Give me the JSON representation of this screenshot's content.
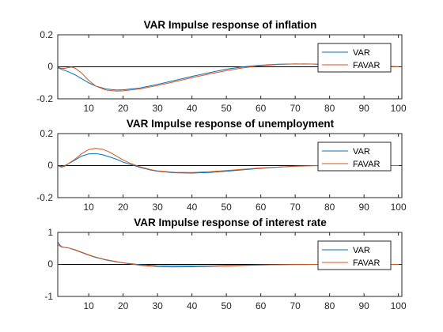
{
  "colors": {
    "var": "#0072BD",
    "favar": "#D95319",
    "axis": "#262626",
    "zero": "#000000",
    "background": "#FFFFFF"
  },
  "chart_data": [
    {
      "type": "line",
      "title": "VAR Impulse response of inflation",
      "xlim": [
        1,
        101
      ],
      "ylim": [
        -0.2,
        0.2
      ],
      "xticks": [
        10,
        20,
        30,
        40,
        50,
        60,
        70,
        80,
        90,
        100
      ],
      "yticks": [
        -0.2,
        0,
        0.2
      ],
      "ytick_labels": [
        "-0.2",
        "0",
        "0.2"
      ],
      "legend": "top-right",
      "zero_line": true,
      "series": [
        {
          "name": "VAR",
          "x": [
            1,
            2,
            4,
            6,
            8,
            10,
            12,
            15,
            18,
            20,
            25,
            30,
            35,
            40,
            45,
            50,
            55,
            60,
            65,
            70,
            75,
            80,
            85,
            90,
            95,
            101
          ],
          "values": [
            -0.005,
            -0.015,
            -0.03,
            -0.05,
            -0.075,
            -0.1,
            -0.12,
            -0.138,
            -0.145,
            -0.144,
            -0.132,
            -0.11,
            -0.085,
            -0.06,
            -0.037,
            -0.015,
            0.0,
            0.01,
            0.016,
            0.018,
            0.017,
            0.013,
            0.009,
            0.006,
            0.003,
            0.0
          ]
        },
        {
          "name": "FAVAR",
          "x": [
            1,
            2,
            3,
            4,
            5,
            6,
            8,
            10,
            12,
            15,
            18,
            20,
            25,
            30,
            35,
            40,
            45,
            50,
            55,
            60,
            65,
            70,
            75,
            80,
            85,
            90,
            95,
            101
          ],
          "values": [
            0.0,
            -0.01,
            -0.01,
            -0.005,
            -0.002,
            -0.008,
            -0.04,
            -0.085,
            -0.12,
            -0.145,
            -0.152,
            -0.15,
            -0.138,
            -0.117,
            -0.093,
            -0.068,
            -0.045,
            -0.024,
            -0.006,
            0.007,
            0.015,
            0.018,
            0.017,
            0.013,
            0.009,
            0.006,
            0.003,
            0.0
          ]
        }
      ]
    },
    {
      "type": "line",
      "title": "VAR Impulse response of unemployment",
      "xlim": [
        1,
        101
      ],
      "ylim": [
        -0.2,
        0.2
      ],
      "xticks": [
        10,
        20,
        30,
        40,
        50,
        60,
        70,
        80,
        90,
        100
      ],
      "yticks": [
        -0.2,
        0,
        0.2
      ],
      "ytick_labels": [
        "-0.2",
        "0",
        "0.2"
      ],
      "legend": "top-right",
      "zero_line": true,
      "series": [
        {
          "name": "VAR",
          "x": [
            1,
            2,
            3,
            4,
            6,
            8,
            10,
            12,
            14,
            16,
            18,
            20,
            22,
            25,
            28,
            30,
            35,
            40,
            45,
            50,
            55,
            60,
            65,
            70,
            75,
            80,
            85,
            90,
            95,
            101
          ],
          "values": [
            0.0,
            -0.005,
            0.0,
            0.01,
            0.035,
            0.06,
            0.073,
            0.075,
            0.068,
            0.055,
            0.04,
            0.022,
            0.008,
            -0.012,
            -0.028,
            -0.035,
            -0.045,
            -0.047,
            -0.043,
            -0.035,
            -0.026,
            -0.017,
            -0.01,
            -0.004,
            0.0,
            0.002,
            0.002,
            0.001,
            0.0,
            0.0
          ]
        },
        {
          "name": "FAVAR",
          "x": [
            1,
            2,
            3,
            4,
            6,
            8,
            10,
            12,
            14,
            16,
            18,
            20,
            22,
            25,
            28,
            30,
            35,
            40,
            45,
            50,
            55,
            60,
            65,
            70,
            75,
            80,
            85,
            90,
            95,
            101
          ],
          "values": [
            0.0,
            -0.01,
            -0.005,
            0.01,
            0.04,
            0.075,
            0.1,
            0.108,
            0.102,
            0.085,
            0.06,
            0.035,
            0.015,
            -0.008,
            -0.025,
            -0.033,
            -0.042,
            -0.043,
            -0.038,
            -0.031,
            -0.023,
            -0.015,
            -0.009,
            -0.004,
            -0.001,
            0.001,
            0.001,
            0.001,
            0.0,
            0.0
          ]
        }
      ]
    },
    {
      "type": "line",
      "title": "VAR Impulse response of interest rate",
      "xlim": [
        1,
        101
      ],
      "ylim": [
        -1,
        1
      ],
      "xticks": [
        10,
        20,
        30,
        40,
        50,
        60,
        70,
        80,
        90,
        100
      ],
      "yticks": [
        -1,
        0,
        1
      ],
      "ytick_labels": [
        "-1",
        "0",
        "1"
      ],
      "legend": "top-right",
      "zero_line": true,
      "series": [
        {
          "name": "VAR",
          "x": [
            1,
            2,
            3,
            4,
            6,
            8,
            10,
            12,
            15,
            18,
            20,
            25,
            30,
            35,
            40,
            45,
            50,
            55,
            60,
            65,
            70,
            75,
            80,
            85,
            90,
            95,
            101
          ],
          "values": [
            0.7,
            0.56,
            0.53,
            0.52,
            0.45,
            0.37,
            0.29,
            0.22,
            0.14,
            0.08,
            0.05,
            -0.01,
            -0.04,
            -0.05,
            -0.05,
            -0.045,
            -0.035,
            -0.025,
            -0.015,
            -0.008,
            -0.003,
            0.0,
            0.001,
            0.001,
            0.0,
            0.0,
            0.0
          ]
        },
        {
          "name": "FAVAR",
          "x": [
            1,
            2,
            3,
            4,
            6,
            8,
            10,
            12,
            15,
            18,
            20,
            25,
            30,
            35,
            40,
            45,
            50,
            55,
            60,
            65,
            70,
            75,
            80,
            85,
            90,
            95,
            101
          ],
          "values": [
            0.62,
            0.55,
            0.53,
            0.52,
            0.46,
            0.38,
            0.3,
            0.23,
            0.15,
            0.09,
            0.05,
            -0.03,
            -0.07,
            -0.08,
            -0.075,
            -0.065,
            -0.05,
            -0.035,
            -0.02,
            -0.01,
            -0.004,
            0.0,
            0.001,
            0.001,
            0.0,
            0.0,
            0.0
          ]
        }
      ]
    }
  ]
}
